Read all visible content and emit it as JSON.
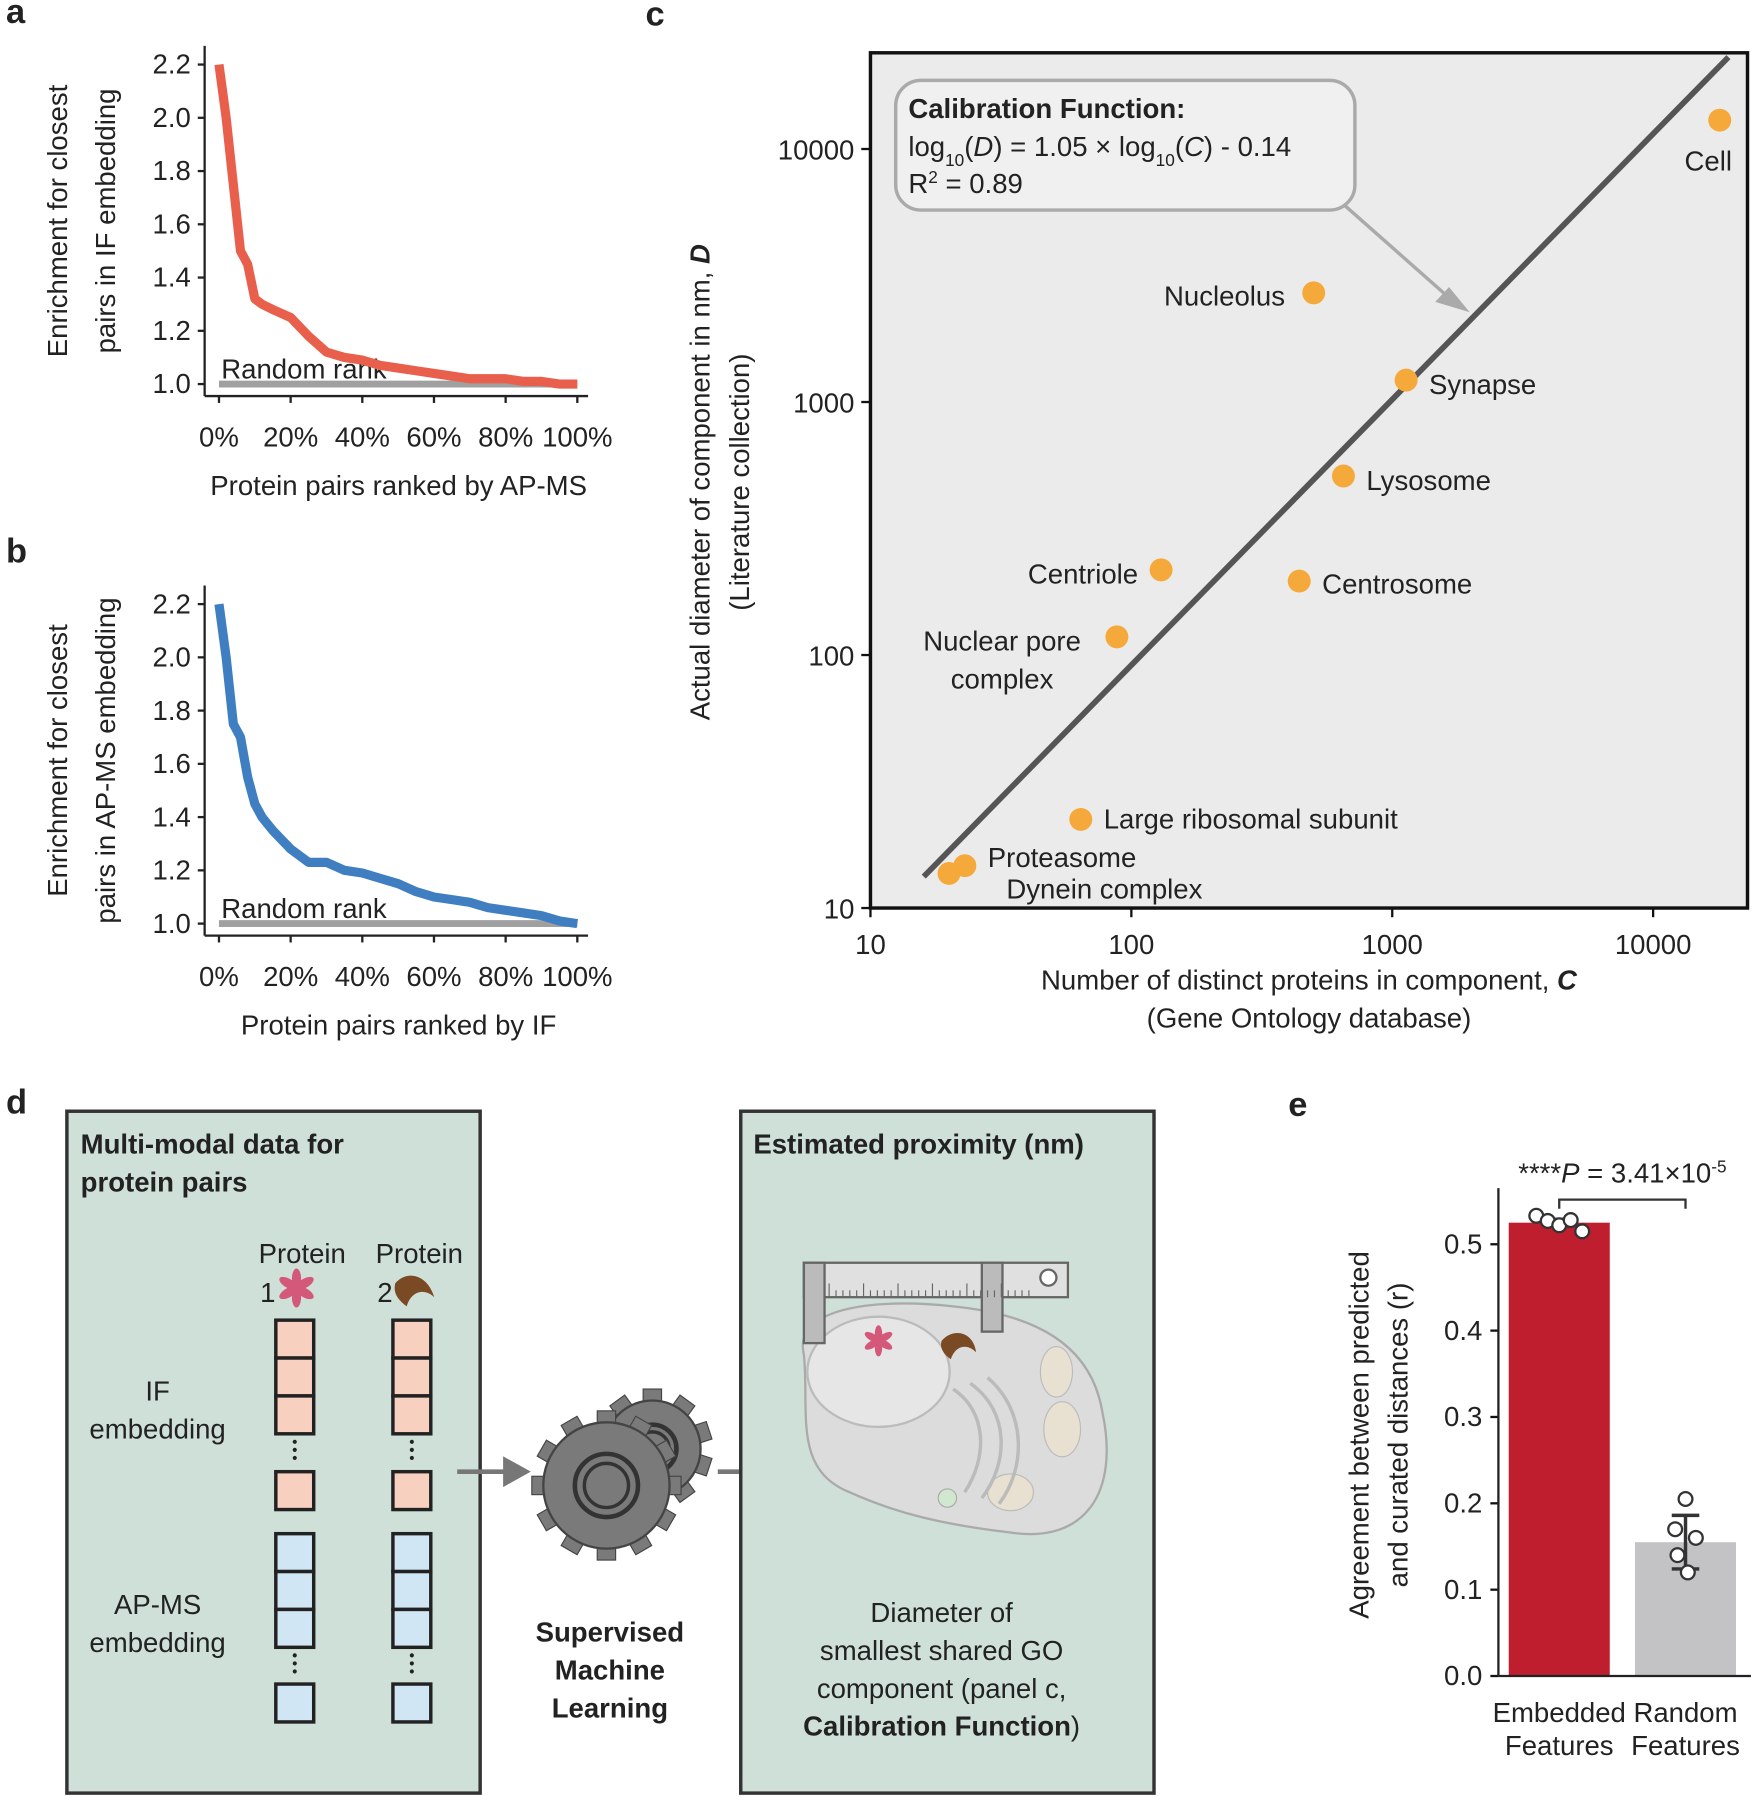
{
  "chart_data": [
    {
      "type": "line",
      "panel_label": "a",
      "y_label": [
        "Enrichment for closest",
        "pairs in IF embedding"
      ],
      "x_label": "Protein pairs ranked by AP-MS",
      "x": [
        0,
        2,
        4,
        6,
        8,
        10,
        12,
        15,
        20,
        25,
        30,
        35,
        40,
        45,
        50,
        55,
        60,
        65,
        70,
        75,
        80,
        85,
        90,
        95,
        100
      ],
      "series": [
        {
          "color": "#e8604c",
          "values": [
            2.2,
            2.0,
            1.75,
            1.5,
            1.45,
            1.32,
            1.3,
            1.28,
            1.25,
            1.18,
            1.12,
            1.1,
            1.09,
            1.07,
            1.06,
            1.05,
            1.04,
            1.03,
            1.02,
            1.02,
            1.02,
            1.01,
            1.01,
            1.0,
            1.0
          ]
        },
        {
          "name": "Random rank",
          "color": "#a0a0a0",
          "values": [
            1.0,
            1.0,
            1.0,
            1.0,
            1.0,
            1.0,
            1.0,
            1.0,
            1.0,
            1.0,
            1.0,
            1.0,
            1.0,
            1.0,
            1.0,
            1.0,
            1.0,
            1.0,
            1.0,
            1.0,
            1.0,
            1.0,
            1.0,
            1.0,
            1.0
          ]
        }
      ],
      "xlim": [
        -4,
        103
      ],
      "xticks": [
        {
          "value": 0,
          "label": "0%"
        },
        {
          "value": 20,
          "label": "20%"
        },
        {
          "value": 40,
          "label": "40%"
        },
        {
          "value": 60,
          "label": "60%"
        },
        {
          "value": 80,
          "label": "80%"
        },
        {
          "value": 100,
          "label": "100%"
        }
      ],
      "ylim": [
        0.955,
        2.27
      ],
      "yticks": [
        {
          "value": 1,
          "label": "1.0"
        },
        1.2,
        1.4,
        1.6,
        1.8,
        {
          "value": 2,
          "label": "2.0"
        },
        2.2
      ]
    },
    {
      "type": "line",
      "panel_label": "b",
      "y_label": [
        "Enrichment for closest",
        "pairs in AP-MS embedding"
      ],
      "x_label": "Protein pairs ranked by IF",
      "x": [
        0,
        2,
        4,
        6,
        8,
        10,
        12,
        15,
        20,
        25,
        30,
        35,
        40,
        45,
        50,
        55,
        60,
        65,
        70,
        75,
        80,
        85,
        90,
        95,
        100
      ],
      "series": [
        {
          "color": "#3f7fc1",
          "values": [
            2.2,
            2.0,
            1.75,
            1.7,
            1.55,
            1.45,
            1.4,
            1.35,
            1.28,
            1.23,
            1.23,
            1.2,
            1.19,
            1.17,
            1.15,
            1.12,
            1.1,
            1.09,
            1.08,
            1.06,
            1.05,
            1.04,
            1.03,
            1.01,
            1.0
          ]
        },
        {
          "name": "Random rank",
          "color": "#a0a0a0",
          "values": [
            1.0,
            1.0,
            1.0,
            1.0,
            1.0,
            1.0,
            1.0,
            1.0,
            1.0,
            1.0,
            1.0,
            1.0,
            1.0,
            1.0,
            1.0,
            1.0,
            1.0,
            1.0,
            1.0,
            1.0,
            1.0,
            1.0,
            1.0,
            1.0,
            1.0
          ]
        }
      ],
      "xlim": [
        -4,
        103
      ],
      "xticks": [
        {
          "value": 0,
          "label": "0%"
        },
        {
          "value": 20,
          "label": "20%"
        },
        {
          "value": 40,
          "label": "40%"
        },
        {
          "value": 60,
          "label": "60%"
        },
        {
          "value": 80,
          "label": "80%"
        },
        {
          "value": 100,
          "label": "100%"
        }
      ],
      "ylim": [
        0.955,
        2.27
      ],
      "yticks": [
        {
          "value": 1,
          "label": "1.0"
        },
        1.2,
        1.4,
        1.6,
        1.8,
        {
          "value": 2,
          "label": "2.0"
        },
        2.2
      ]
    },
    {
      "type": "scatter",
      "panel_label": "c",
      "log_scale": true,
      "color": "#f5a93a",
      "y_label": [
        "Actual diameter of component in nm, ",
        "D"
      ],
      "y_label_note": "(Literature collection)",
      "x_label": [
        "Number of distinct proteins in component, ",
        "C"
      ],
      "x_label_note": "(Gene Ontology database)",
      "point_labels": [
        "Cell",
        "Nucleolus",
        "Synapse",
        "Lysosome",
        "Centrosome",
        "Centriole",
        [
          "Nuclear pore",
          "complex"
        ],
        "Large ribosomal subunit",
        "Proteasome",
        "Dynein complex"
      ],
      "x": [
        18000,
        500,
        1130,
        650,
        440,
        130,
        88,
        64,
        23,
        20
      ],
      "values": [
        13000,
        2700,
        1220,
        510,
        196,
        217,
        118,
        22.4,
        14.7,
        13.7
      ],
      "xlim": [
        10,
        23000
      ],
      "xticks": [
        10,
        100,
        1000,
        10000
      ],
      "ylim": [
        10,
        24000
      ],
      "yticks": [
        10,
        100,
        1000,
        10000
      ],
      "fit": {
        "slope": 1.05,
        "intercept": -0.14
      },
      "annotation": {
        "title": "Calibration Function:",
        "equation": [
          "log",
          "10",
          "(",
          "D",
          ") = 1.05 × log",
          "10",
          "(",
          "C",
          ") - 0.14"
        ],
        "r_squared": [
          "R",
          "2",
          " = 0.89"
        ]
      }
    },
    {
      "type": "bar",
      "panel_label": "e",
      "y_label": [
        "Agreement between predicted",
        "and curated distances (r)"
      ],
      "categories": [
        [
          "Embedded",
          "Features"
        ],
        [
          "Random",
          "Features"
        ]
      ],
      "values": [
        0.525,
        0.155
      ],
      "errors": [
        0.004,
        0.031
      ],
      "points": [
        [
          0.533,
          0.527,
          0.522,
          0.528,
          0.515
        ],
        [
          0.205,
          0.17,
          0.16,
          0.14,
          0.12
        ]
      ],
      "colors": [
        "#be1e2d",
        "#c3c3c5"
      ],
      "ylim": [
        0,
        0.565
      ],
      "yticks": [
        {
          "value": 0,
          "label": "0.0"
        },
        0.1,
        0.2,
        0.3,
        0.4,
        0.5
      ],
      "significance": [
        "****",
        "P",
        " = 3.41×10",
        "-5"
      ]
    }
  ],
  "diagram": {
    "panel_label": "d",
    "input_box": {
      "title": [
        "Multi-modal data for",
        "protein pairs"
      ],
      "proteins": [
        {
          "label": "Protein",
          "number": "1"
        },
        {
          "label": "Protein",
          "number": "2"
        }
      ],
      "embeddings": [
        [
          "IF",
          "embedding"
        ],
        [
          "AP-MS",
          "embedding"
        ]
      ]
    },
    "method": [
      "Supervised",
      "Machine",
      "Learning"
    ],
    "output_box": {
      "title": "Estimated proximity (nm)",
      "description": [
        "Diameter of",
        "smallest shared GO",
        "component (panel c,"
      ],
      "description_emphasis": "Calibration Function",
      "description_end": ")"
    }
  }
}
